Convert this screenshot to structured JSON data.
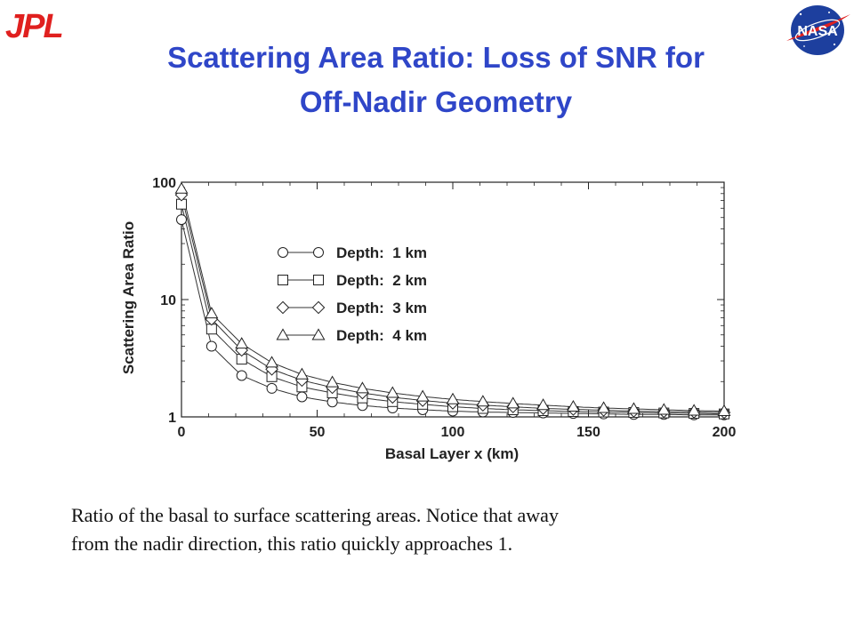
{
  "logos": {
    "left_text": "JPL",
    "right_text": "NASA",
    "brand_red": "#e0201f",
    "nasa_blue": "#1d3f9e"
  },
  "title": {
    "line1": "Scattering Area Ratio: Loss of SNR for",
    "line2": "Off-Nadir Geometry",
    "color": "#2f46c8"
  },
  "caption": {
    "line1": "Ratio of the basal to surface scattering areas. Notice that away",
    "line2": "from the nadir direction, this ratio quickly approaches 1."
  },
  "chart_data": {
    "type": "line",
    "xlabel": "Basal Layer x (km)",
    "ylabel": "Scattering Area Ratio",
    "xlim": [
      0,
      200
    ],
    "ylim": [
      1,
      100
    ],
    "yscale": "log",
    "x_ticks": [
      "0",
      "50",
      "100",
      "150",
      "200"
    ],
    "y_ticks": [
      "1",
      "10",
      "100"
    ],
    "grid": false,
    "legend_position": "center",
    "x": [
      0,
      11.1,
      22.2,
      33.3,
      44.4,
      55.6,
      66.7,
      77.8,
      88.9,
      100,
      111.1,
      122.2,
      133.3,
      144.4,
      155.6,
      166.7,
      177.8,
      188.9,
      200
    ],
    "series": [
      {
        "name": "Depth:  1 km",
        "marker": "circle",
        "values": [
          48,
          4.0,
          2.25,
          1.75,
          1.48,
          1.34,
          1.25,
          1.19,
          1.15,
          1.12,
          1.1,
          1.09,
          1.08,
          1.07,
          1.06,
          1.05,
          1.05,
          1.04,
          1.04
        ]
      },
      {
        "name": "Depth:  2 km",
        "marker": "square",
        "values": [
          65,
          5.6,
          3.1,
          2.2,
          1.8,
          1.6,
          1.45,
          1.35,
          1.28,
          1.22,
          1.18,
          1.15,
          1.13,
          1.11,
          1.1,
          1.09,
          1.08,
          1.07,
          1.06
        ]
      },
      {
        "name": "Depth:  3 km",
        "marker": "diamond",
        "values": [
          78,
          6.8,
          3.7,
          2.55,
          2.05,
          1.78,
          1.6,
          1.47,
          1.38,
          1.31,
          1.26,
          1.22,
          1.18,
          1.16,
          1.14,
          1.12,
          1.11,
          1.1,
          1.09
        ]
      },
      {
        "name": "Depth:  4 km",
        "marker": "triangle",
        "values": [
          88,
          7.6,
          4.2,
          2.9,
          2.3,
          1.97,
          1.75,
          1.6,
          1.49,
          1.41,
          1.35,
          1.3,
          1.26,
          1.22,
          1.19,
          1.17,
          1.15,
          1.13,
          1.12
        ]
      }
    ]
  }
}
